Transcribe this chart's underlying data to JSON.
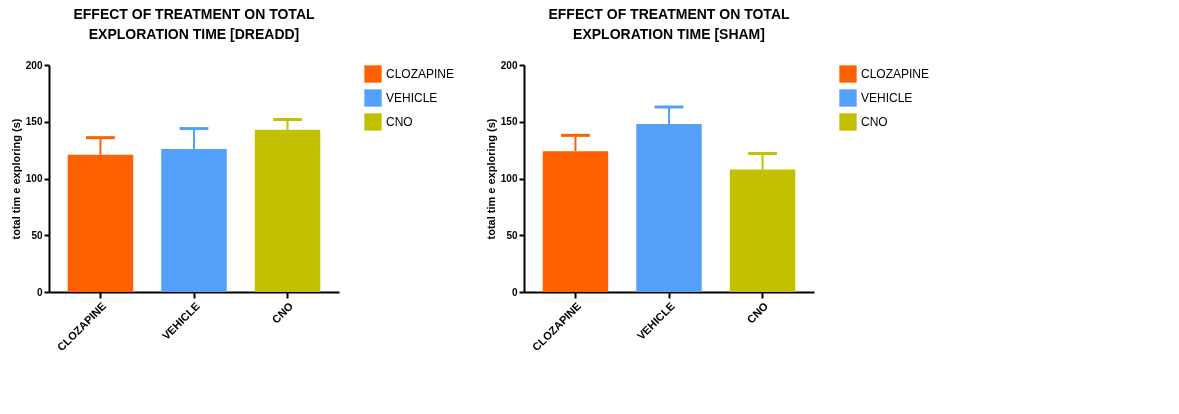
{
  "chart_data": [
    {
      "type": "bar",
      "title": "EFFECT OF TREATMENT ON TOTAL EXPLORATION TIME [DREADD]",
      "ylabel": "total tim e exploring (s)",
      "categories": [
        "CLOZAPINE",
        "VEHICLE",
        "CNO"
      ],
      "series": [
        {
          "name": "CLOZAPINE",
          "color": "#ff6000",
          "values": [
            121,
            null,
            null
          ],
          "errors": [
            [
              121,
              136
            ],
            null,
            null
          ]
        },
        {
          "name": "VEHICLE",
          "color": "#55a0fb",
          "values": [
            null,
            126,
            null
          ],
          "errors": [
            null,
            [
              126,
              144
            ],
            null
          ]
        },
        {
          "name": "CNO",
          "color": "#c2c000",
          "values": [
            null,
            null,
            143
          ],
          "errors": [
            null,
            null,
            [
              143,
              152
            ]
          ]
        }
      ],
      "ylim": [
        0,
        200
      ],
      "yticks": [
        0,
        50,
        100,
        150,
        200
      ],
      "grid": false,
      "legend": "top right"
    },
    {
      "type": "bar",
      "title": "EFFECT OF TREATMENT ON TOTAL EXPLORATION TIME [SHAM]",
      "ylabel": "total tim e exploring (s)",
      "categories": [
        "CLOZAPINE",
        "VEHICLE",
        "CNO"
      ],
      "series": [
        {
          "name": "CLOZAPINE",
          "color": "#ff6000",
          "values": [
            124,
            null,
            null
          ],
          "errors": [
            [
              124,
              138
            ],
            null,
            null
          ]
        },
        {
          "name": "VEHICLE",
          "color": "#55a0fb",
          "values": [
            null,
            148,
            null
          ],
          "errors": [
            null,
            [
              148,
              163
            ],
            null
          ]
        },
        {
          "name": "CNO",
          "color": "#c2c000",
          "values": [
            null,
            null,
            108
          ],
          "errors": [
            null,
            null,
            [
              108,
              122
            ]
          ]
        }
      ],
      "ylim": [
        0,
        200
      ],
      "yticks": [
        0,
        50,
        100,
        150,
        200
      ],
      "grid": false,
      "legend": "top right"
    }
  ]
}
